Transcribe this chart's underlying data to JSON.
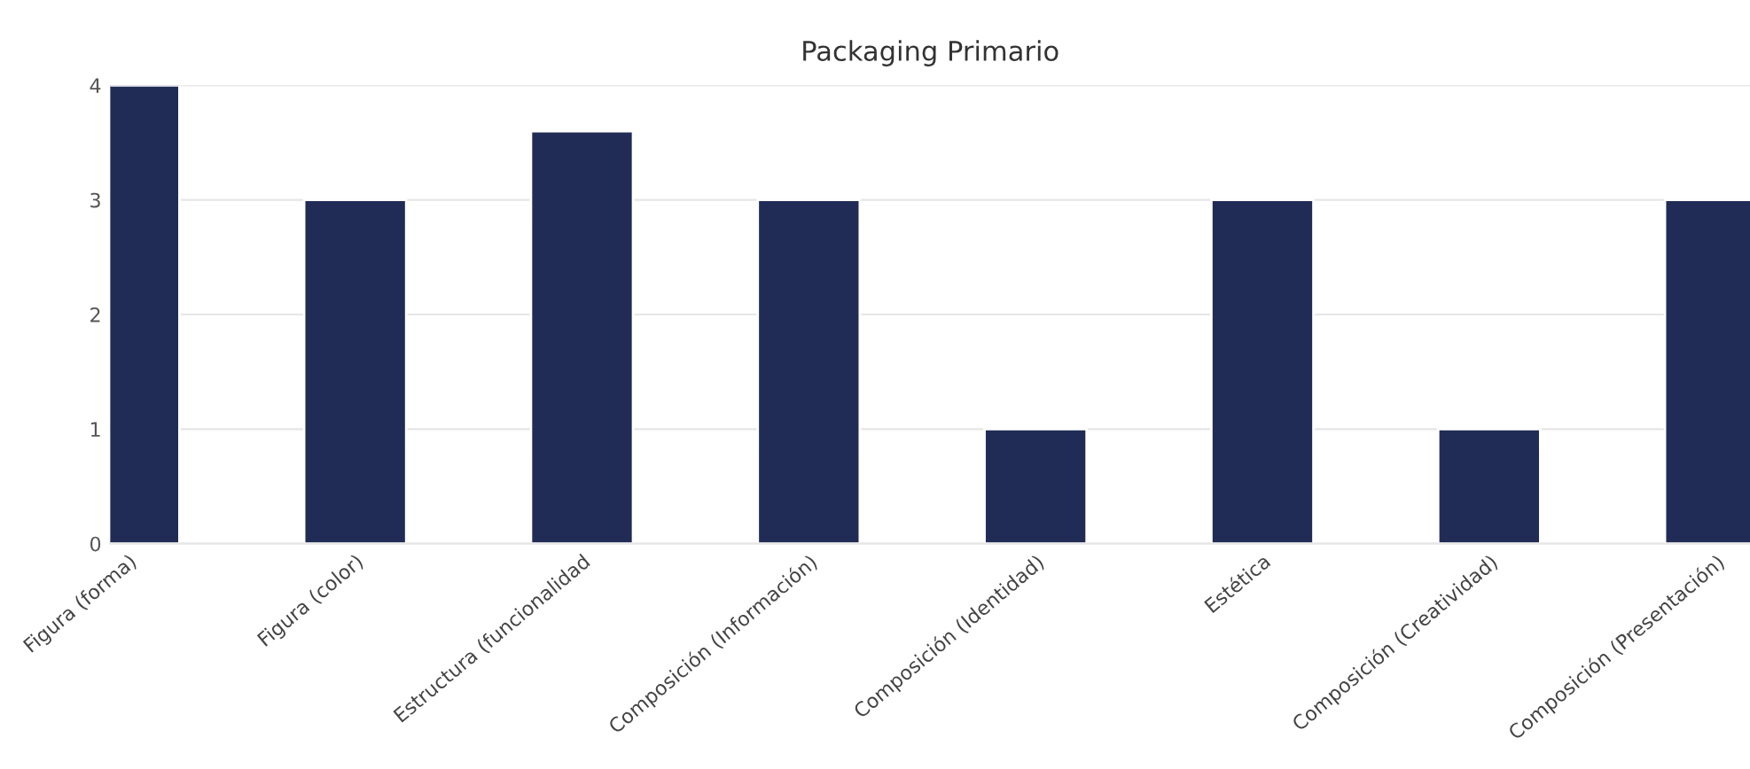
{
  "chart_data": {
    "type": "bar",
    "title": "Packaging Primario",
    "categories": [
      "Figura (forma)",
      "Figura (color)",
      "Estructura (funcionalidad",
      "Composición (Información)",
      "Composición (Identidad)",
      "Estética",
      "Composición (Creatividad)",
      "Composición (Presentación)"
    ],
    "values": [
      4,
      3,
      3.6,
      3,
      1,
      3,
      1,
      3
    ],
    "color": "#212c56",
    "ylim": [
      0,
      4
    ],
    "yticks": [
      0,
      1,
      2,
      3,
      4
    ],
    "grid": "y",
    "legend": false
  }
}
